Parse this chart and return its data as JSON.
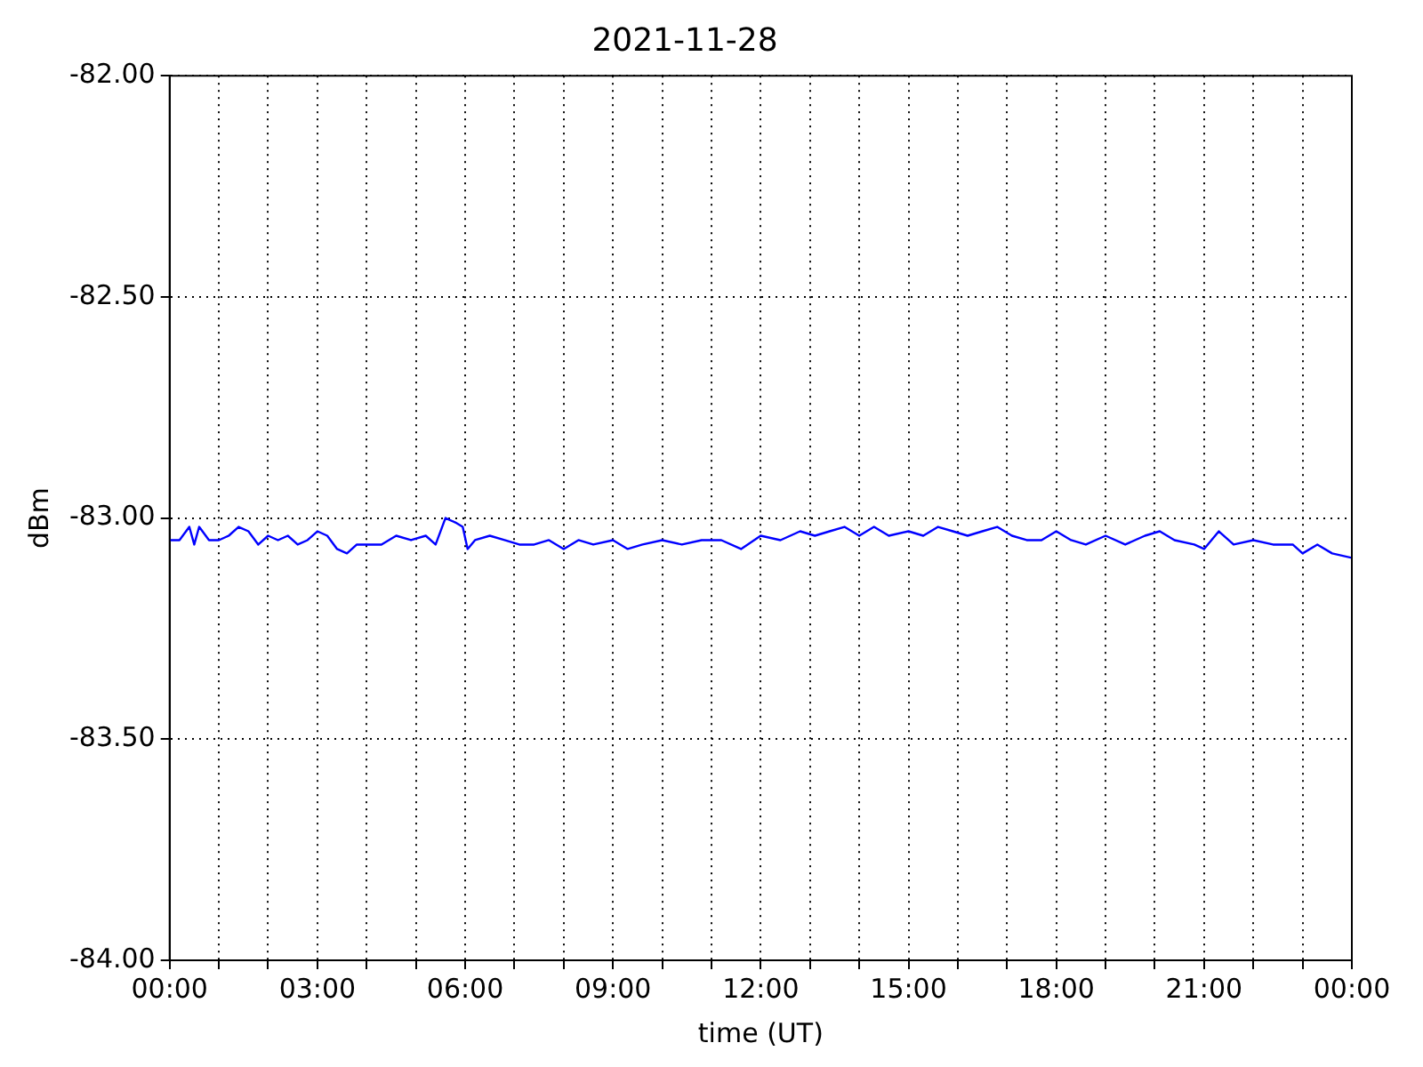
{
  "chart_data": {
    "type": "line",
    "title": "2021-11-28",
    "xlabel": "time (UT)",
    "ylabel": "dBm",
    "x": [
      0,
      0.2,
      0.4,
      0.5,
      0.6,
      0.8,
      1.0,
      1.2,
      1.4,
      1.6,
      1.8,
      2.0,
      2.2,
      2.4,
      2.6,
      2.8,
      3.0,
      3.2,
      3.4,
      3.6,
      3.8,
      4.0,
      4.3,
      4.6,
      4.9,
      5.2,
      5.4,
      5.6,
      5.8,
      5.95,
      6.05,
      6.2,
      6.5,
      6.8,
      7.1,
      7.4,
      7.7,
      8.0,
      8.3,
      8.6,
      9.0,
      9.3,
      9.6,
      10,
      10.4,
      10.8,
      11.2,
      11.6,
      12,
      12.4,
      12.8,
      13.1,
      13.4,
      13.7,
      14.0,
      14.3,
      14.6,
      15.0,
      15.3,
      15.6,
      15.9,
      16.2,
      16.5,
      16.8,
      17.1,
      17.4,
      17.7,
      18.0,
      18.3,
      18.6,
      19.0,
      19.4,
      19.8,
      20.1,
      20.4,
      20.8,
      21.0,
      21.3,
      21.6,
      22.0,
      22.4,
      22.8,
      23.0,
      23.3,
      23.6,
      24
    ],
    "series": [
      {
        "color": "#0000ff",
        "values": [
          -83.05,
          -83.05,
          -83.02,
          -83.06,
          -83.02,
          -83.05,
          -83.05,
          -83.04,
          -83.02,
          -83.03,
          -83.06,
          -83.04,
          -83.05,
          -83.04,
          -83.06,
          -83.05,
          -83.03,
          -83.04,
          -83.07,
          -83.08,
          -83.06,
          -83.06,
          -83.06,
          -83.04,
          -83.05,
          -83.04,
          -83.06,
          -83.0,
          -83.01,
          -83.02,
          -83.07,
          -83.05,
          -83.04,
          -83.05,
          -83.06,
          -83.06,
          -83.05,
          -83.07,
          -83.05,
          -83.06,
          -83.05,
          -83.07,
          -83.06,
          -83.05,
          -83.06,
          -83.05,
          -83.05,
          -83.07,
          -83.04,
          -83.05,
          -83.03,
          -83.04,
          -83.03,
          -83.02,
          -83.04,
          -83.02,
          -83.04,
          -83.03,
          -83.04,
          -83.02,
          -83.03,
          -83.04,
          -83.03,
          -83.02,
          -83.04,
          -83.05,
          -83.05,
          -83.03,
          -83.05,
          -83.06,
          -83.04,
          -83.06,
          -83.04,
          -83.03,
          -83.05,
          -83.06,
          -83.07,
          -83.03,
          -83.06,
          -83.05,
          -83.06,
          -83.06,
          -83.08,
          -83.06,
          -83.08,
          -83.09
        ]
      }
    ],
    "xlim": [
      0,
      24
    ],
    "xticks": [
      {
        "value": 0,
        "label": "00:00"
      },
      {
        "value": 1,
        "label": null
      },
      {
        "value": 2,
        "label": null
      },
      {
        "value": 3,
        "label": "03:00"
      },
      {
        "value": 4,
        "label": null
      },
      {
        "value": 5,
        "label": null
      },
      {
        "value": 6,
        "label": "06:00"
      },
      {
        "value": 7,
        "label": null
      },
      {
        "value": 8,
        "label": null
      },
      {
        "value": 9,
        "label": "09:00"
      },
      {
        "value": 10,
        "label": null
      },
      {
        "value": 11,
        "label": null
      },
      {
        "value": 12,
        "label": "12:00"
      },
      {
        "value": 13,
        "label": null
      },
      {
        "value": 14,
        "label": null
      },
      {
        "value": 15,
        "label": "15:00"
      },
      {
        "value": 16,
        "label": null
      },
      {
        "value": 17,
        "label": null
      },
      {
        "value": 18,
        "label": "18:00"
      },
      {
        "value": 19,
        "label": null
      },
      {
        "value": 20,
        "label": null
      },
      {
        "value": 21,
        "label": "21:00"
      },
      {
        "value": 22,
        "label": null
      },
      {
        "value": 23,
        "label": null
      },
      {
        "value": 24,
        "label": "00:00"
      }
    ],
    "ylim": [
      -84,
      -82
    ],
    "yticks": [
      {
        "value": -84,
        "label": "-84.00"
      },
      {
        "value": -83.5,
        "label": "-83.50"
      },
      {
        "value": -83,
        "label": "-83.00"
      },
      {
        "value": -82.5,
        "label": "-82.50"
      },
      {
        "value": -82,
        "label": "-82.00"
      }
    ],
    "grid": true,
    "legend": false,
    "marker": "none",
    "line_style": "solid"
  }
}
